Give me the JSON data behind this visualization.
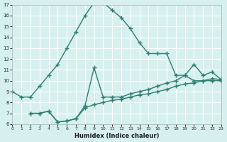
{
  "xlabel": "Humidex (Indice chaleur)",
  "bg_color": "#d6f0f0",
  "grid_color": "#ffffff",
  "line_color": "#2e7d6e",
  "line1_x": [
    0,
    1,
    2,
    3,
    4,
    5,
    6,
    7,
    8,
    9,
    10,
    11,
    12,
    13,
    14,
    15,
    16,
    17,
    18,
    19,
    20,
    21,
    22,
    23
  ],
  "line1_y": [
    9.0,
    8.5,
    8.5,
    9.5,
    10.5,
    11.5,
    13.0,
    14.5,
    16.0,
    17.2,
    17.2,
    16.5,
    15.8,
    14.8,
    13.5,
    12.5,
    12.5,
    12.5,
    10.5,
    10.5,
    10.0,
    10.0,
    10.0,
    10.0
  ],
  "line2_x": [
    2,
    3,
    4,
    5,
    6,
    7,
    8,
    9,
    10,
    11,
    12,
    13,
    14,
    15,
    16,
    17,
    18,
    19,
    20,
    21,
    22,
    23
  ],
  "line2_y": [
    7.0,
    7.0,
    7.2,
    6.2,
    6.3,
    6.5,
    7.7,
    11.2,
    8.5,
    8.5,
    8.5,
    8.8,
    9.0,
    9.2,
    9.5,
    9.8,
    10.0,
    10.5,
    11.5,
    10.5,
    10.8,
    10.1
  ],
  "line3_x": [
    2,
    3,
    4,
    5,
    6,
    7,
    8,
    9,
    10,
    11,
    12,
    13,
    14,
    15,
    16,
    17,
    18,
    19,
    20,
    21,
    22,
    23
  ],
  "line3_y": [
    7.0,
    7.0,
    7.2,
    6.2,
    6.3,
    6.5,
    7.5,
    7.8,
    8.0,
    8.2,
    8.3,
    8.5,
    8.7,
    8.8,
    9.0,
    9.2,
    9.5,
    9.7,
    9.8,
    10.0,
    10.2,
    10.1
  ],
  "ylim": [
    6,
    17
  ],
  "xlim": [
    0,
    23
  ],
  "yticks": [
    6,
    7,
    8,
    9,
    10,
    11,
    12,
    13,
    14,
    15,
    16,
    17
  ],
  "xticks": [
    0,
    1,
    2,
    3,
    4,
    5,
    6,
    7,
    8,
    9,
    10,
    11,
    12,
    13,
    14,
    15,
    16,
    17,
    18,
    19,
    20,
    21,
    22,
    23
  ]
}
